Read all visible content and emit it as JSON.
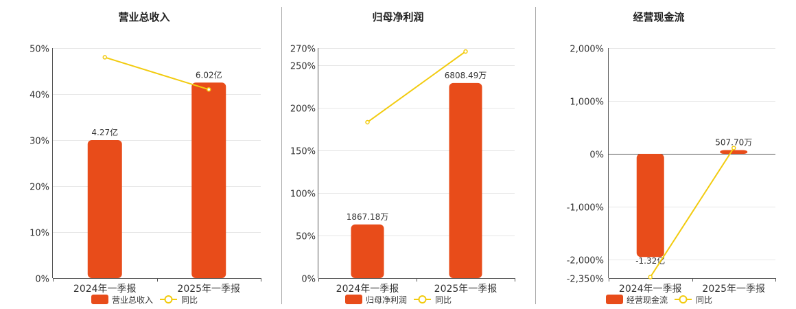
{
  "chart_data": [
    {
      "type": "bar",
      "title": "营业总收入",
      "categories": [
        "2024年一季报",
        "2025年一季报"
      ],
      "series": [
        {
          "name": "营业总收入",
          "type": "bar",
          "labels": [
            "4.27亿",
            "6.02亿"
          ]
        },
        {
          "name": "同比",
          "type": "line",
          "values": [
            48,
            41
          ]
        }
      ],
      "bar_scale_values": [
        30,
        42.5
      ],
      "yticks": [
        "0%",
        "10%",
        "20%",
        "30%",
        "40%",
        "50%"
      ],
      "ylim": [
        0,
        50
      ],
      "grid": true,
      "legend": "bottom"
    },
    {
      "type": "bar",
      "title": "归母净利润",
      "categories": [
        "2024年一季报",
        "2025年一季报"
      ],
      "series": [
        {
          "name": "归母净利润",
          "type": "bar",
          "labels": [
            "1867.18万",
            "6808.49万"
          ]
        },
        {
          "name": "同比",
          "type": "line",
          "values": [
            183,
            266
          ]
        }
      ],
      "bar_scale_values": [
        63,
        229
      ],
      "yticks": [
        "0%",
        "50%",
        "100%",
        "150%",
        "200%",
        "250%",
        "270%"
      ],
      "ylim": [
        0,
        270
      ],
      "grid": true,
      "legend": "bottom"
    },
    {
      "type": "bar",
      "title": "经营现金流",
      "categories": [
        "2024年一季报",
        "2025年一季报"
      ],
      "series": [
        {
          "name": "经营现金流",
          "type": "bar",
          "labels": [
            "-1.32亿",
            "507.70万"
          ]
        },
        {
          "name": "同比",
          "type": "line",
          "values": [
            -2330,
            110
          ]
        }
      ],
      "bar_scale_values": [
        -1950,
        70
      ],
      "yticks": [
        "2,000%",
        "1,000%",
        "0%",
        "-1,000%",
        "-2,000%",
        "-2,350%"
      ],
      "ylim": [
        -2350,
        2000
      ],
      "grid": true,
      "legend": "bottom"
    }
  ],
  "colors": {
    "bar": "#e84c1a",
    "line": "#f2cb0f"
  }
}
